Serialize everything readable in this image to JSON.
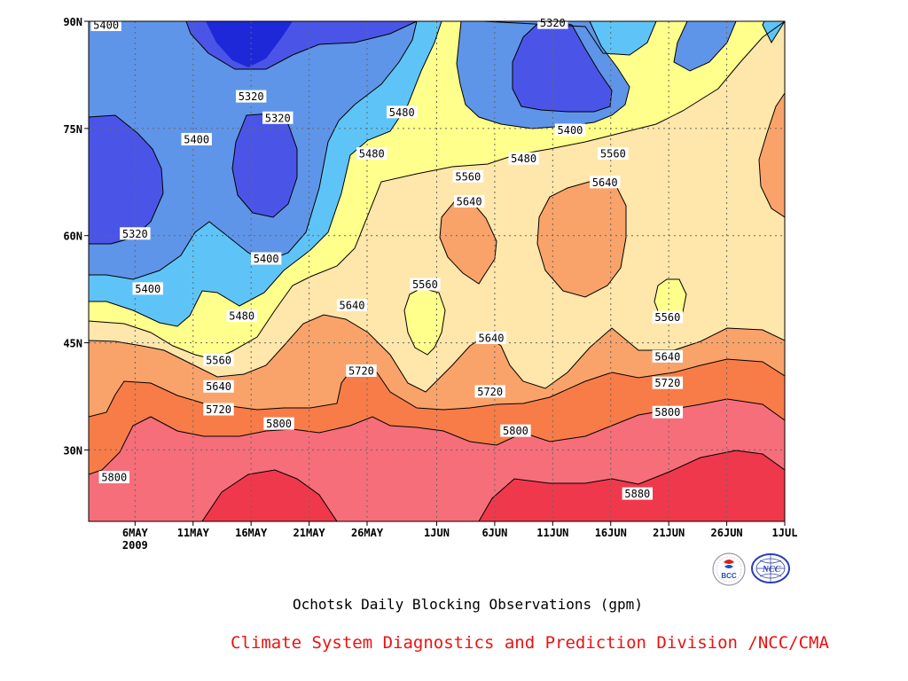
{
  "title": "Ochotsk Daily Blocking Observations (gpm)",
  "credit": "Climate System Diagnostics and Prediction Division /NCC/CMA",
  "logos": [
    {
      "name": "bcc-logo",
      "text": "BCC"
    },
    {
      "name": "ncc-logo",
      "text": "NCC"
    }
  ],
  "chart_data": {
    "type": "heatmap",
    "subtype": "filled-contour",
    "title": "Ochotsk Daily Blocking Observations (gpm)",
    "x": {
      "quantity": "date (days from 2 May 2009)",
      "range": [
        0,
        60
      ],
      "ticks": [
        {
          "value": 4,
          "label": "6MAY",
          "sublabel": "2009"
        },
        {
          "value": 9,
          "label": "11MAY"
        },
        {
          "value": 14,
          "label": "16MAY"
        },
        {
          "value": 19,
          "label": "21MAY"
        },
        {
          "value": 24,
          "label": "26MAY"
        },
        {
          "value": 30,
          "label": "1JUN"
        },
        {
          "value": 35,
          "label": "6JUN"
        },
        {
          "value": 40,
          "label": "11JUN"
        },
        {
          "value": 45,
          "label": "16JUN"
        },
        {
          "value": 50,
          "label": "21JUN"
        },
        {
          "value": 55,
          "label": "26JUN"
        },
        {
          "value": 60,
          "label": "1JUL"
        }
      ]
    },
    "y": {
      "quantity": "latitude",
      "range": [
        20,
        90
      ],
      "ticks": [
        {
          "value": 30,
          "label": "30N"
        },
        {
          "value": 45,
          "label": "45N"
        },
        {
          "value": 60,
          "label": "60N"
        },
        {
          "value": 75,
          "label": "75N"
        },
        {
          "value": 90,
          "label": "90N"
        }
      ]
    },
    "grid": true,
    "grid_style": "dotted",
    "levels": [
      5320,
      5400,
      5480,
      5560,
      5640,
      5720,
      5800,
      5880
    ],
    "colors": [
      "#1e28d8",
      "#4a55e8",
      "#5f95e8",
      "#5ec4f8",
      "#ffff8c",
      "#ffe6aa",
      "#f9a36a",
      "#f87c48",
      "#f56e7a",
      "#f0384c"
    ],
    "contour_labels": [
      {
        "value": "5400",
        "x": 1.5,
        "y": 89.5
      },
      {
        "value": "5320",
        "x": 40,
        "y": 89.8
      },
      {
        "value": "5320",
        "x": 14,
        "y": 79.5
      },
      {
        "value": "5320",
        "x": 16.3,
        "y": 76.5
      },
      {
        "value": "5400",
        "x": 9.3,
        "y": 73.5
      },
      {
        "value": "5480",
        "x": 27,
        "y": 77.3
      },
      {
        "value": "5480",
        "x": 24.4,
        "y": 71.5
      },
      {
        "value": "5400",
        "x": 41.5,
        "y": 74.8
      },
      {
        "value": "5480",
        "x": 37.5,
        "y": 70.8
      },
      {
        "value": "5560",
        "x": 45.2,
        "y": 71.5
      },
      {
        "value": "5560",
        "x": 32.7,
        "y": 68.3
      },
      {
        "value": "5640",
        "x": 32.8,
        "y": 64.8
      },
      {
        "value": "5640",
        "x": 44.5,
        "y": 67.5
      },
      {
        "value": "5320",
        "x": 4,
        "y": 60.3
      },
      {
        "value": "5400",
        "x": 15.3,
        "y": 56.8
      },
      {
        "value": "5400",
        "x": 5.1,
        "y": 52.6
      },
      {
        "value": "5560",
        "x": 29,
        "y": 53.2
      },
      {
        "value": "5560",
        "x": 49.9,
        "y": 48.6
      },
      {
        "value": "5480",
        "x": 13.2,
        "y": 48.8
      },
      {
        "value": "5640",
        "x": 22.7,
        "y": 50.3
      },
      {
        "value": "5640",
        "x": 34.7,
        "y": 45.7
      },
      {
        "value": "5560",
        "x": 11.2,
        "y": 42.6
      },
      {
        "value": "5640",
        "x": 49.9,
        "y": 43.1
      },
      {
        "value": "5720",
        "x": 23.5,
        "y": 41.1
      },
      {
        "value": "5640",
        "x": 11.2,
        "y": 38.9
      },
      {
        "value": "5720",
        "x": 34.6,
        "y": 38.2
      },
      {
        "value": "5720",
        "x": 49.9,
        "y": 39.4
      },
      {
        "value": "5720",
        "x": 11.2,
        "y": 35.7
      },
      {
        "value": "5800",
        "x": 16.4,
        "y": 33.7
      },
      {
        "value": "5800",
        "x": 49.9,
        "y": 35.3
      },
      {
        "value": "5800",
        "x": 36.8,
        "y": 32.7
      },
      {
        "value": "5800",
        "x": 2.2,
        "y": 26.2
      },
      {
        "value": "5880",
        "x": 47.3,
        "y": 23.9
      }
    ]
  }
}
